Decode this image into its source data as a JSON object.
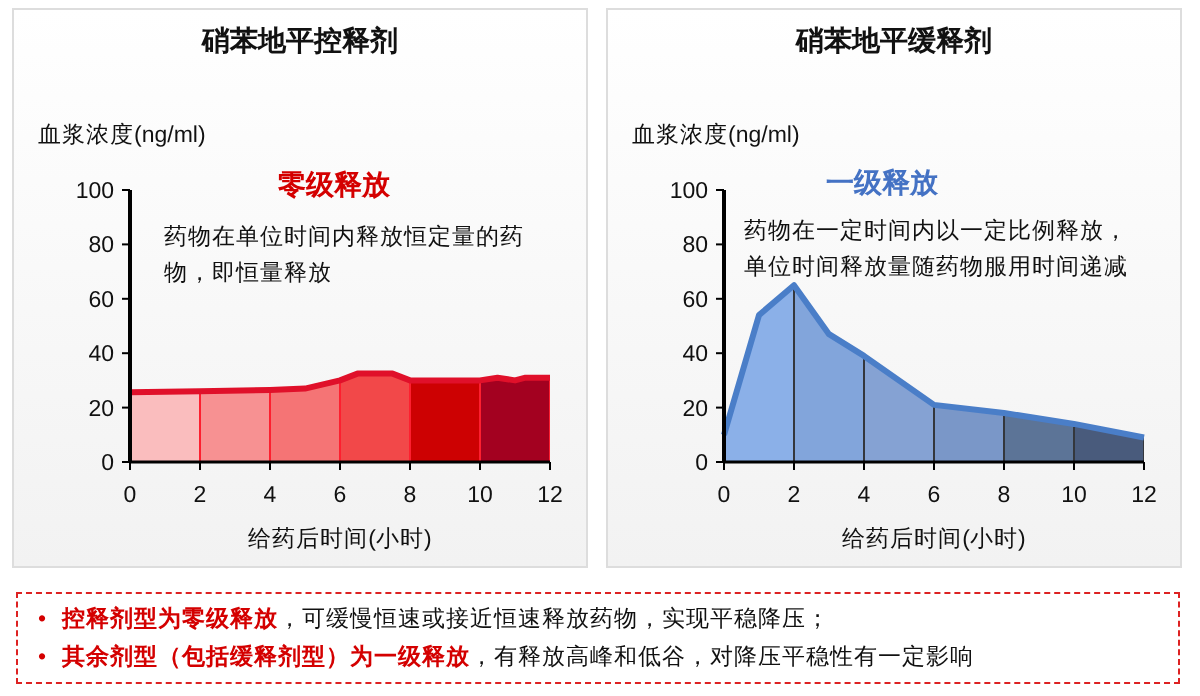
{
  "chart_data": [
    {
      "type": "area",
      "title": "硝苯地平控释剂",
      "ylabel": "血浆浓度(ng/ml)",
      "xlabel": "给药后时间(小时)",
      "annotations": [
        "零级释放",
        "药物在单位时间内释放恒定量的药物，即恒量释放"
      ],
      "x": [
        0,
        2,
        4,
        5,
        6,
        6.5,
        7.5,
        8,
        10,
        10.5,
        11,
        11.3,
        12
      ],
      "series": [
        {
          "color": "#e0102a",
          "values": [
            25.6,
            26,
            26.5,
            27,
            30,
            32.5,
            32.5,
            30,
            30,
            31,
            30,
            31,
            31
          ]
        }
      ],
      "bands": [
        {
          "axis": "x",
          "from": 0,
          "to": 2,
          "color": "#fcc8c8"
        },
        {
          "axis": "x",
          "from": 2,
          "to": 4,
          "color": "#f99a9a"
        },
        {
          "axis": "x",
          "from": 4,
          "to": 6,
          "color": "#f77b7b"
        },
        {
          "axis": "x",
          "from": 6,
          "to": 8,
          "color": "#f44c4c"
        },
        {
          "axis": "x",
          "from": 8,
          "to": 10,
          "color": "#cc0000"
        },
        {
          "axis": "x",
          "from": 10,
          "to": 12,
          "color": "#a00020"
        }
      ],
      "xlim": [
        0,
        12
      ],
      "xticks": [
        0,
        2,
        4,
        6,
        8,
        10,
        12
      ],
      "ylim": [
        0,
        100
      ],
      "yticks": [
        0,
        20,
        40,
        60,
        80,
        100
      ],
      "grid": false
    },
    {
      "type": "area",
      "title": "硝苯地平缓释剂",
      "ylabel": "血浆浓度(ng/ml)",
      "xlabel": "给药后时间(小时)",
      "annotations": [
        "一级释放",
        "药物在一定时间内以一定比例释放，单位时间释放量随药物服用时间递减"
      ],
      "x": [
        0,
        1,
        2,
        3,
        4,
        6,
        8,
        10,
        12
      ],
      "series": [
        {
          "color": "#4a7ec8",
          "values": [
            10,
            54,
            65,
            47,
            39,
            21,
            18,
            14,
            9
          ]
        }
      ],
      "bands": [
        {
          "axis": "x",
          "from": 0,
          "to": 2,
          "color": "#90b4ea"
        },
        {
          "axis": "x",
          "from": 2,
          "to": 4,
          "color": "#86a8dc"
        },
        {
          "axis": "x",
          "from": 4,
          "to": 6,
          "color": "#8aa5d4"
        },
        {
          "axis": "x",
          "from": 6,
          "to": 8,
          "color": "#7e9ac8"
        },
        {
          "axis": "x",
          "from": 8,
          "to": 10,
          "color": "#5e7494"
        },
        {
          "axis": "x",
          "from": 10,
          "to": 12,
          "color": "#4a5a78"
        }
      ],
      "xlim": [
        0,
        12
      ],
      "xticks": [
        0,
        2,
        4,
        6,
        8,
        10,
        12
      ],
      "ylim": [
        0,
        100
      ],
      "yticks": [
        0,
        20,
        40,
        60,
        80,
        100
      ],
      "grid": false
    },
    {
      "type": "other",
      "annotations": [
        "•",
        "控释剂型为零级释放",
        "，可缓慢恒速或接近恒速释放药物，实现平稳降压；",
        "•",
        "其余剂型（包括缓释剂型）为一级释放",
        "，有释放高峰和低谷，对降压平稳性有一定影响"
      ]
    }
  ]
}
